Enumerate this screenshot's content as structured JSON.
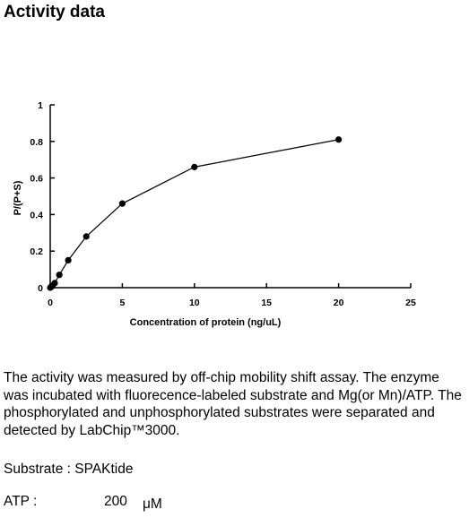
{
  "page": {
    "title": "Activity data",
    "description": "The activity was measured by off-chip mobility shift assay. The enzyme was incubated with fluorecence-labeled  substrate and Mg(or Mn)/ATP. The phosphorylated and unphosphorylated substrates were separated and detected by LabChip™3000.",
    "substrate": "Substrate : SPAKtide",
    "atp_label": "ATP :",
    "atp_value": "200",
    "atp_unit": "μM"
  },
  "chart_data": {
    "type": "line",
    "title": "",
    "xlabel": "Concentration of protein (ng/uL)",
    "ylabel": "P/(P+S)",
    "xlim": [
      0,
      25
    ],
    "ylim": [
      0,
      1
    ],
    "x_ticks": [
      0,
      5,
      10,
      15,
      20,
      25
    ],
    "y_ticks": [
      0,
      0.2,
      0.4,
      0.6,
      0.8,
      1
    ],
    "x_tick_labels": [
      "0",
      "5",
      "10",
      "15",
      "20",
      "25"
    ],
    "y_tick_labels": [
      "0",
      "0.2",
      "0.4",
      "0.6",
      "0.8",
      "1"
    ],
    "grid": false,
    "series": [
      {
        "x": [
          0,
          0.04,
          0.08,
          0.16,
          0.31,
          0.63,
          1.25,
          2.5,
          5,
          10,
          20
        ],
        "y": [
          0.0,
          0.003,
          0.006,
          0.012,
          0.025,
          0.07,
          0.15,
          0.28,
          0.46,
          0.66,
          0.81
        ]
      }
    ],
    "marker_color": "#000000",
    "line_color": "#000000"
  }
}
